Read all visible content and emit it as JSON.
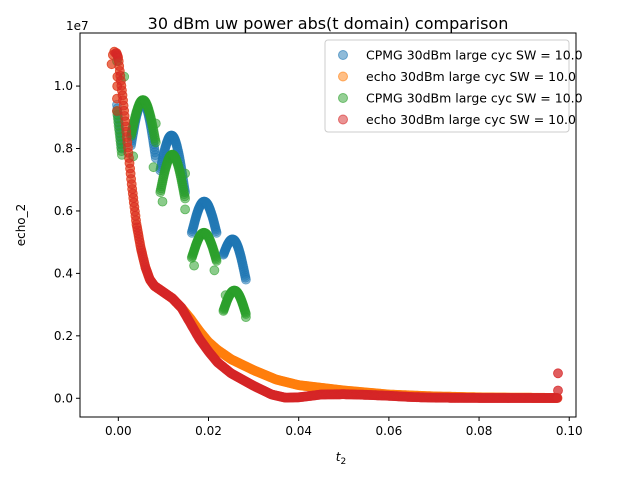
{
  "chart_data": {
    "type": "scatter",
    "title": "30 dBm uw power abs(t domain) comparison",
    "xlabel": "t",
    "xlabel_sub": "2",
    "ylabel": "echo_2",
    "y_multiplier": "1e7",
    "xlim": [
      -0.0085,
      0.1015
    ],
    "ylim": [
      -0.06,
      1.17
    ],
    "x_ticks": [
      {
        "value": 0.0,
        "label": "0.00"
      },
      {
        "value": 0.02,
        "label": "0.02"
      },
      {
        "value": 0.04,
        "label": "0.04"
      },
      {
        "value": 0.06,
        "label": "0.06"
      },
      {
        "value": 0.08,
        "label": "0.08"
      },
      {
        "value": 0.1,
        "label": "0.10"
      }
    ],
    "y_ticks": [
      {
        "value": 0.0,
        "label": "0.0"
      },
      {
        "value": 0.2,
        "label": "0.2"
      },
      {
        "value": 0.4,
        "label": "0.4"
      },
      {
        "value": 0.6,
        "label": "0.6"
      },
      {
        "value": 0.8,
        "label": "0.8"
      },
      {
        "value": 1.0,
        "label": "1.0"
      }
    ],
    "grid": false,
    "legend_position": "top-right",
    "series": [
      {
        "name": "CPMG 30dBm large cyc SW = 10.0",
        "color": "#1f77b4",
        "kind": "cpmg",
        "segments": [
          {
            "x0": -0.0003,
            "x1": 0.0008,
            "y0": 0.94,
            "y1": 0.8
          },
          {
            "x0": 0.0028,
            "x1": 0.0083,
            "y0": 0.81,
            "y1": 0.77,
            "peak": 0.95
          },
          {
            "x0": 0.0093,
            "x1": 0.0148,
            "y0": 0.73,
            "y1": 0.66,
            "peak": 0.84
          },
          {
            "x0": 0.0163,
            "x1": 0.0218,
            "y0": 0.53,
            "y1": 0.53,
            "peak": 0.63
          },
          {
            "x0": 0.0233,
            "x1": 0.0283,
            "y0": 0.46,
            "y1": 0.38,
            "peak": 0.505
          }
        ]
      },
      {
        "name": "echo 30dBm large cyc SW = 10.0",
        "color": "#ff7f0e",
        "kind": "echo_orange",
        "x_range": [
          -0.0003,
          0.0975
        ]
      },
      {
        "name": "CPMG 30dBm large cyc SW = 10.0",
        "color": "#2ca02c",
        "kind": "cpmg",
        "segments": [
          {
            "x0": -0.0003,
            "x1": 0.0008,
            "y0": 0.92,
            "y1": 0.78
          },
          {
            "x0": 0.0028,
            "x1": 0.0083,
            "y0": 0.84,
            "y1": 0.82,
            "peak": 0.955
          },
          {
            "x0": 0.0093,
            "x1": 0.0148,
            "y0": 0.66,
            "y1": 0.64,
            "peak": 0.78
          },
          {
            "x0": 0.0163,
            "x1": 0.0218,
            "y0": 0.45,
            "y1": 0.44,
            "peak": 0.53
          },
          {
            "x0": 0.0233,
            "x1": 0.0283,
            "y0": 0.28,
            "y1": 0.27,
            "peak": 0.345
          }
        ],
        "outliers": [
          [
            -0.0003,
            1.08
          ],
          [
            0.0013,
            1.03
          ],
          [
            0.0033,
            0.775
          ],
          [
            0.0083,
            0.88
          ],
          [
            0.0098,
            0.63
          ],
          [
            0.0148,
            0.605
          ],
          [
            0.0168,
            0.425
          ],
          [
            0.0213,
            0.41
          ],
          [
            0.0238,
            0.33
          ],
          [
            0.0283,
            0.26
          ],
          [
            0.0078,
            0.74
          ],
          [
            0.0148,
            0.72
          ]
        ]
      },
      {
        "name": "echo 30dBm large cyc SW = 10.0",
        "color": "#d62728",
        "kind": "echo_red",
        "x_range": [
          -0.0003,
          0.0975
        ],
        "outliers": [
          [
            0.0975,
            0.08
          ],
          [
            0.0975,
            0.025
          ]
        ]
      }
    ]
  }
}
